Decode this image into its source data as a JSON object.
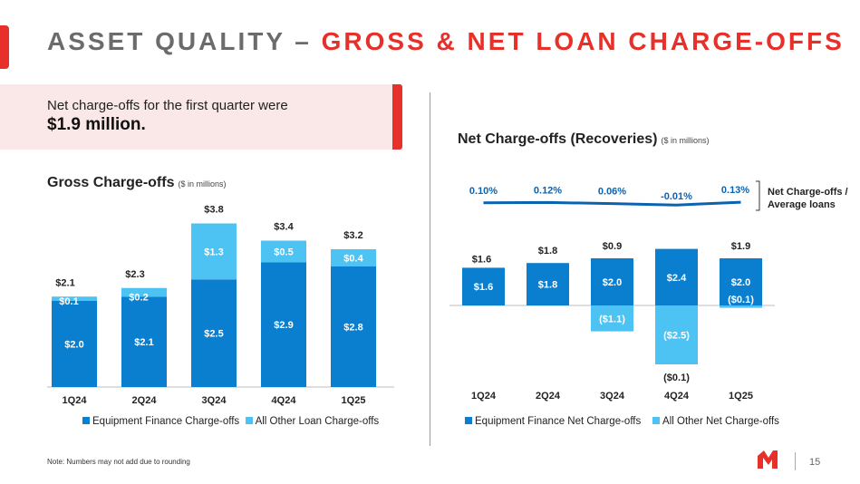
{
  "header": {
    "title_prefix": "ASSET QUALITY –",
    "title_highlight": "GROSS & NET LOAN CHARGE-OFFS"
  },
  "callout": {
    "line1": "Net charge-offs for the first quarter were",
    "amount": "$1.9 million",
    "period": "."
  },
  "colors": {
    "dark_blue": "#0b7fcf",
    "light_blue": "#4cc3f2",
    "red": "#e8302a",
    "trend_line": "#0b63b0"
  },
  "chart_data": [
    {
      "type": "bar",
      "stacked": true,
      "title": "Gross Charge-offs",
      "unit_note": "($ in millions)",
      "categories": [
        "1Q24",
        "2Q24",
        "3Q24",
        "4Q24",
        "1Q25"
      ],
      "series": [
        {
          "name": "Equipment Finance Charge-offs",
          "values": [
            2.0,
            2.1,
            2.5,
            2.9,
            2.8
          ],
          "labels": [
            "$2.0",
            "$2.1",
            "$2.5",
            "$2.9",
            "$2.8"
          ]
        },
        {
          "name": "All Other Loan Charge-offs",
          "values": [
            0.1,
            0.2,
            1.3,
            0.5,
            0.4
          ],
          "labels": [
            "$0.1",
            "$0.2",
            "$1.3",
            "$0.5",
            "$0.4"
          ]
        }
      ],
      "totals": [
        2.1,
        2.3,
        3.8,
        3.4,
        3.2
      ],
      "total_labels": [
        "$2.1",
        "$2.3",
        "$3.8",
        "$3.4",
        "$3.2"
      ],
      "ylim": [
        0,
        3.9
      ],
      "legend": "bottom"
    },
    {
      "type": "bar",
      "stacked": true,
      "title": "Net Charge-offs (Recoveries)",
      "unit_note": "($ in millions)",
      "categories": [
        "1Q24",
        "2Q24",
        "3Q24",
        "4Q24",
        "1Q25"
      ],
      "series": [
        {
          "name": "Equipment Finance Net Charge-offs",
          "values": [
            1.6,
            1.8,
            2.0,
            2.4,
            2.0
          ],
          "labels": [
            "$1.6",
            "$1.8",
            "$2.0",
            "$2.4",
            "$2.0"
          ]
        },
        {
          "name": "All Other Net Charge-offs",
          "values": [
            0,
            0,
            -1.1,
            -2.5,
            -0.1
          ],
          "labels": [
            "",
            "",
            "($1.1)",
            "($2.5)",
            "($0.1)"
          ]
        }
      ],
      "totals": [
        1.6,
        1.8,
        0.9,
        -0.1,
        1.9
      ],
      "total_labels": [
        "$1.6",
        "$1.8",
        "$0.9",
        "($0.1)",
        "$1.9"
      ],
      "ylim": [
        -3.0,
        2.5
      ],
      "ratio_line": {
        "name": "Net Charge-offs / Average loans",
        "label_line1": "Net Charge-offs /",
        "label_line2": "Average loans",
        "values": [
          0.1,
          0.12,
          0.06,
          -0.01,
          0.13
        ],
        "labels": [
          "0.10%",
          "0.12%",
          "0.06%",
          "-0.01%",
          "0.13%"
        ]
      },
      "legend": "bottom"
    }
  ],
  "footer": {
    "note": "Note: Numbers may not add due to rounding",
    "page": "15"
  }
}
